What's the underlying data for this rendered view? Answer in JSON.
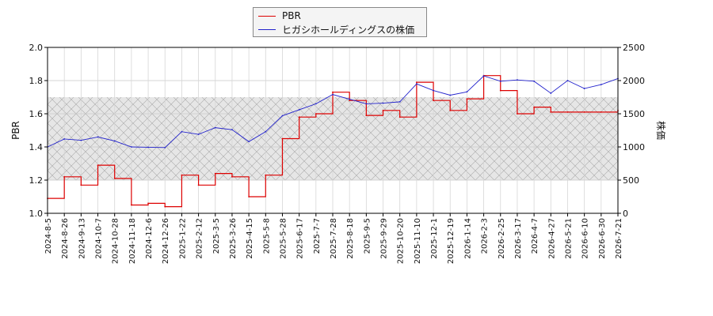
{
  "chart_data": {
    "type": "line",
    "title": "",
    "ylabel_left": "PBR",
    "ylabel_right": "株価",
    "ylim_left": [
      1.0,
      2.0
    ],
    "ylim_right": [
      0,
      2500
    ],
    "yticks_left": [
      "1.0",
      "1.2",
      "1.4",
      "1.6",
      "1.8",
      "2.0"
    ],
    "yticks_right": [
      "0",
      "500",
      "1000",
      "1500",
      "2000",
      "2500"
    ],
    "legend_position": "top-center",
    "band": {
      "axis": "left",
      "from": 1.2,
      "to": 1.7,
      "pattern": "crosshatch"
    },
    "x_dates": [
      "2024-8-5",
      "2024-8-26",
      "2024-9-13",
      "2024-10-7",
      "2024-10-28",
      "2024-11-18",
      "2024-12-6",
      "2024-12-26",
      "2025-1-22",
      "2025-2-12",
      "2025-3-5",
      "2025-3-26",
      "2025-4-15",
      "2025-5-8",
      "2025-5-28",
      "2025-6-17",
      "2025-7-7",
      "2025-7-28",
      "2025-8-18",
      "2025-9-5",
      "2025-9-29",
      "2025-10-20",
      "2025-11-10",
      "2025-12-1",
      "2025-12-19",
      "2026-1-14",
      "2026-2-3",
      "2026-2-25",
      "2026-3-17",
      "2026-4-7",
      "2026-4-27",
      "2026-5-21",
      "2026-6-10",
      "2026-6-30",
      "2026-7-21"
    ],
    "series": [
      {
        "name": "PBR",
        "axis": "left",
        "color": "#dd0000",
        "values": [
          1.09,
          1.22,
          1.17,
          1.29,
          1.21,
          1.05,
          1.06,
          1.04,
          1.23,
          1.17,
          1.24,
          1.22,
          1.1,
          1.23,
          1.45,
          1.58,
          1.6,
          1.73,
          1.68,
          1.59,
          1.62,
          1.58,
          1.79,
          1.68,
          1.62,
          1.69,
          1.83,
          1.74,
          1.6,
          1.64,
          1.61,
          1.61,
          1.61,
          1.61,
          1.62
        ]
      },
      {
        "name": "ヒガシホールディングスの株価",
        "axis": "right",
        "color": "#2222cc",
        "values": [
          1000,
          1120,
          1100,
          1150,
          1090,
          1000,
          995,
          990,
          1230,
          1190,
          1290,
          1260,
          1080,
          1230,
          1470,
          1560,
          1650,
          1790,
          1720,
          1650,
          1660,
          1680,
          1950,
          1850,
          1780,
          1830,
          2070,
          1990,
          2010,
          1990,
          1810,
          2000,
          1880,
          1940,
          2030
        ]
      }
    ]
  }
}
